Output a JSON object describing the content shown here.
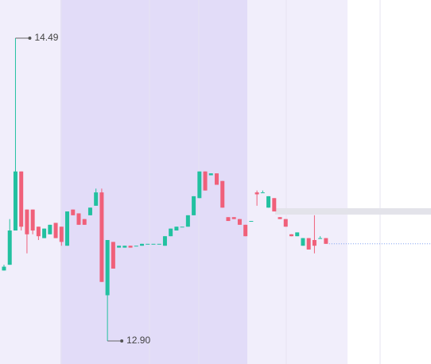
{
  "chart_data": {
    "type": "candlestick",
    "up_color": "#22c1a0",
    "down_color": "#f0607a",
    "open": [
      13.27,
      13.3,
      13.48,
      13.79,
      13.59,
      13.59,
      13.5,
      13.44,
      13.46,
      13.52,
      13.5,
      13.4,
      13.59,
      13.57,
      13.54,
      13.56,
      13.61,
      13.68,
      13.14,
      13.42,
      13.39,
      13.39,
      13.4,
      13.4,
      13.4,
      13.41,
      13.41,
      13.41,
      13.4,
      13.45,
      13.48,
      13.5,
      13.5,
      13.56,
      13.65,
      13.79,
      13.77,
      13.78,
      13.74,
      13.55,
      13.55,
      13.54,
      13.51,
      13.53,
      13.68,
      13.68,
      13.6,
      13.65,
      13.55,
      13.54,
      13.46,
      13.45,
      13.4,
      13.44,
      13.43,
      13.44,
      13.44
    ],
    "high": [
      13.3,
      13.54,
      14.49,
      13.79,
      13.59,
      13.59,
      13.5,
      13.49,
      13.51,
      13.52,
      13.5,
      13.58,
      13.59,
      13.57,
      13.54,
      13.6,
      13.7,
      13.7,
      13.43,
      13.42,
      13.4,
      13.4,
      13.4,
      13.4,
      13.41,
      13.41,
      13.41,
      13.41,
      13.45,
      13.49,
      13.5,
      13.5,
      13.56,
      13.66,
      13.79,
      13.79,
      13.78,
      13.78,
      13.74,
      13.55,
      13.55,
      13.54,
      13.51,
      13.53,
      13.69,
      13.69,
      13.66,
      13.65,
      13.55,
      13.54,
      13.46,
      13.47,
      13.44,
      13.44,
      13.56,
      13.45,
      13.44
    ],
    "low": [
      13.27,
      13.3,
      13.48,
      13.48,
      13.36,
      13.46,
      13.43,
      13.44,
      13.46,
      13.44,
      13.4,
      13.4,
      13.56,
      13.51,
      13.51,
      13.56,
      13.61,
      13.21,
      12.9,
      13.28,
      13.39,
      13.39,
      13.39,
      13.4,
      13.4,
      13.41,
      13.41,
      13.41,
      13.4,
      13.45,
      13.48,
      13.5,
      13.5,
      13.56,
      13.65,
      13.69,
      13.77,
      13.72,
      13.6,
      13.53,
      13.54,
      13.51,
      13.45,
      13.53,
      13.61,
      13.68,
      13.6,
      13.58,
      13.54,
      13.5,
      13.45,
      13.45,
      13.4,
      13.38,
      13.36,
      13.44,
      13.41
    ],
    "close": [
      13.29,
      13.48,
      13.79,
      13.5,
      13.46,
      13.48,
      13.45,
      13.49,
      13.51,
      13.44,
      13.42,
      13.58,
      13.56,
      13.51,
      13.51,
      13.6,
      13.68,
      13.21,
      13.43,
      13.28,
      13.4,
      13.4,
      13.39,
      13.4,
      13.41,
      13.41,
      13.41,
      13.41,
      13.45,
      13.49,
      13.5,
      13.5,
      13.56,
      13.66,
      13.79,
      13.69,
      13.78,
      13.72,
      13.6,
      13.53,
      13.54,
      13.51,
      13.45,
      13.53,
      13.67,
      13.68,
      13.66,
      13.58,
      13.54,
      13.5,
      13.45,
      13.47,
      13.44,
      13.38,
      13.4,
      13.44,
      13.41
    ],
    "annotations": [
      {
        "value": 14.49,
        "label": "14.49",
        "index": 2,
        "at": "high"
      },
      {
        "value": 12.9,
        "label": "12.90",
        "index": 18,
        "at": "low"
      }
    ]
  }
}
